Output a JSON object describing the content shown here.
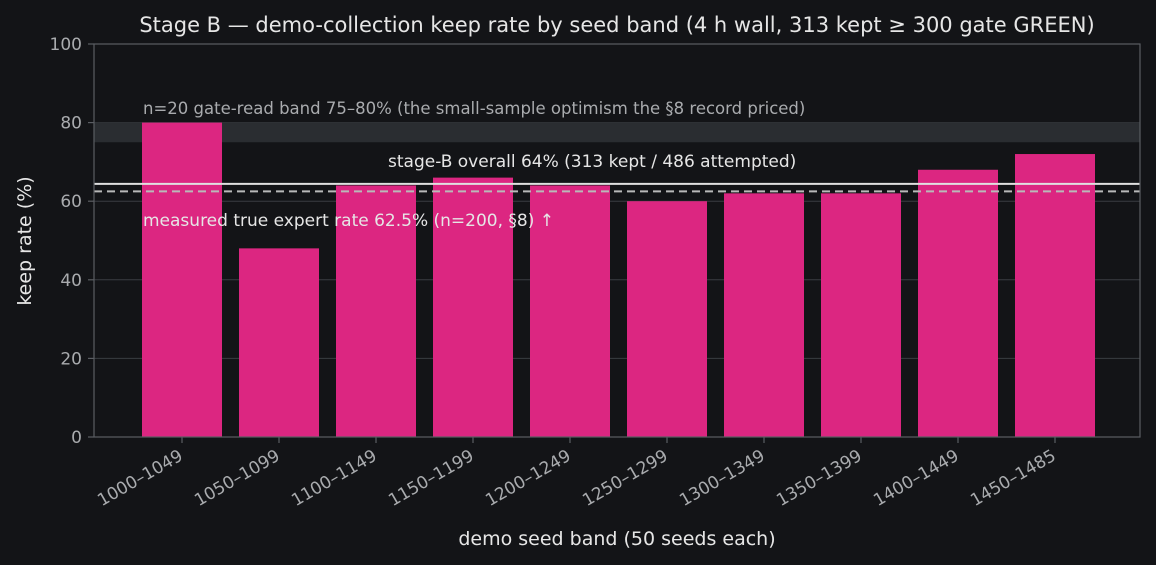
{
  "chart_data": {
    "type": "bar",
    "title": "Stage B — demo-collection keep rate by seed band (4 h wall, 313 kept ≥ 300 gate GREEN)",
    "xlabel": "demo seed band (50 seeds each)",
    "ylabel": "keep rate (%)",
    "ylim": [
      0,
      100
    ],
    "yticks": [
      "0",
      "20",
      "40",
      "60",
      "80",
      "100"
    ],
    "ytick_values": [
      0,
      20,
      40,
      60,
      80,
      100
    ],
    "grid": "horizontal",
    "categories": [
      "1000–1049",
      "1050–1099",
      "1100–1149",
      "1150–1199",
      "1200–1249",
      "1250–1299",
      "1300–1349",
      "1350–1399",
      "1400–1449",
      "1450–1485"
    ],
    "values": [
      80,
      48,
      64,
      66,
      64,
      60,
      62,
      62,
      68,
      72
    ],
    "band": {
      "from": 75,
      "to": 80,
      "label": "n=20 gate-read band 75–80% (the small-sample optimism the §8 record priced)"
    },
    "overall_line": {
      "value": 64.4,
      "label": "stage-B overall 64%  (313 kept / 486 attempted)"
    },
    "expert_line": {
      "value": 62.5,
      "label": "measured true expert rate 62.5% (n=200, §8) ↑"
    },
    "colors": {
      "background": "#131417",
      "bar": "#dc2681",
      "band": "#2a2d31",
      "grid": "#3a3d42",
      "axis": "#5a5d62",
      "text": "#e6e6e6",
      "muted": "#a9abae",
      "overall_line": "#e0e0e0",
      "expert_line": "#b9b9b9"
    }
  }
}
